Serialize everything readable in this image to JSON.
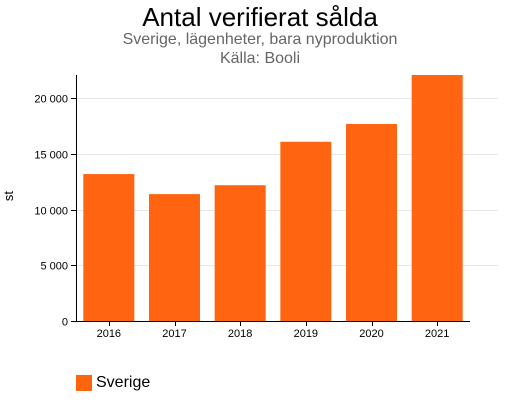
{
  "chart_data": {
    "type": "bar",
    "title": "Antal verifierat sålda",
    "subtitle": "Sverige, lägenheter, bara nyproduktion",
    "source": "Källa: Booli",
    "ylabel": "st",
    "xlabel": "",
    "categories": [
      "2016",
      "2017",
      "2018",
      "2019",
      "2020",
      "2021"
    ],
    "series": [
      {
        "name": "Sverige",
        "values": [
          13200,
          11400,
          12200,
          16100,
          17700,
          22100
        ],
        "color": "#ff6510"
      }
    ],
    "ylim": [
      0,
      22100
    ],
    "yticks": [
      0,
      5000,
      10000,
      15000,
      20000
    ],
    "ytick_labels": [
      "0",
      "5 000",
      "10 000",
      "15 000",
      "20 000"
    ],
    "grid": true,
    "legend_position": "bottom-left"
  }
}
